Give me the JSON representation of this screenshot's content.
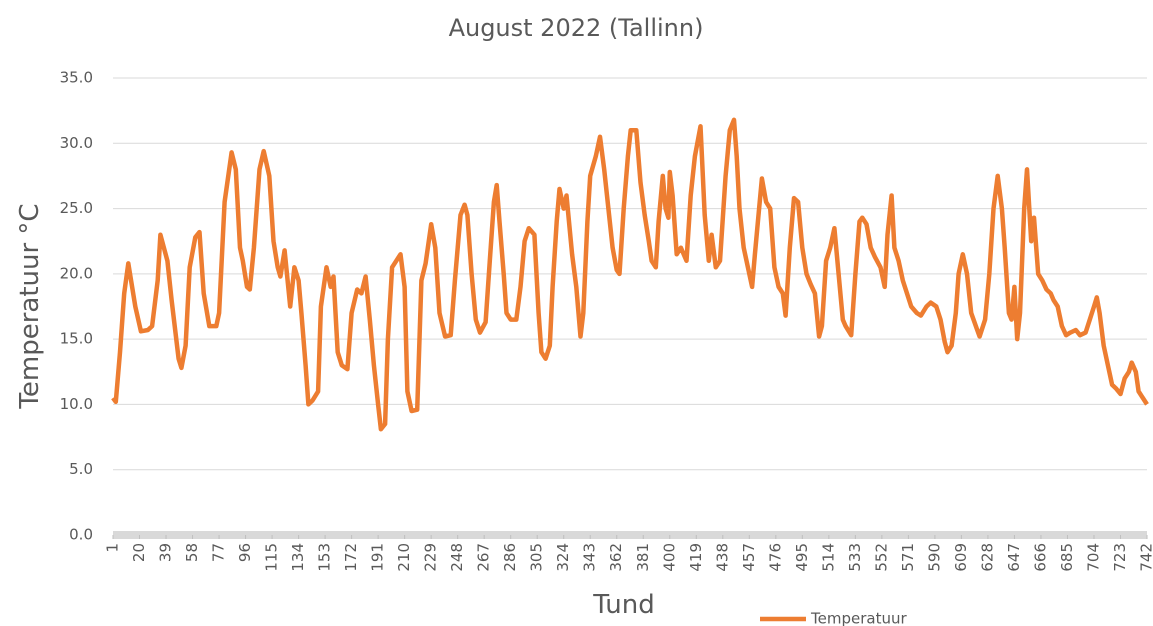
{
  "chart_data": {
    "type": "line",
    "title": "August 2022 (Tallinn)",
    "x_label": "Tund",
    "y_label": "Temperatuur °C",
    "x": [
      1,
      3,
      6,
      9,
      12,
      17,
      21,
      26,
      29,
      33,
      35,
      40,
      43,
      48,
      50,
      53,
      56,
      60,
      63,
      66,
      70,
      75,
      77,
      81,
      86,
      89,
      92,
      94,
      97,
      99,
      102,
      106,
      109,
      113,
      116,
      119,
      121,
      124,
      128,
      131,
      134,
      136,
      139,
      141,
      144,
      148,
      150,
      154,
      157,
      159,
      162,
      165,
      169,
      172,
      176,
      179,
      182,
      185,
      188,
      191,
      193,
      196,
      198,
      201,
      204,
      207,
      210,
      212,
      215,
      219,
      222,
      225,
      229,
      232,
      235,
      239,
      243,
      246,
      250,
      253,
      255,
      258,
      261,
      264,
      268,
      271,
      274,
      276,
      278,
      281,
      283,
      286,
      290,
      293,
      296,
      299,
      303,
      306,
      308,
      311,
      314,
      316,
      319,
      321,
      324,
      326,
      330,
      333,
      336,
      338,
      341,
      343,
      347,
      350,
      353,
      356,
      359,
      362,
      364,
      367,
      370,
      372,
      376,
      379,
      382,
      385,
      387,
      390,
      392,
      395,
      397,
      399,
      400,
      402,
      405,
      408,
      412,
      415,
      418,
      422,
      425,
      428,
      430,
      433,
      436,
      440,
      443,
      446,
      448,
      450,
      453,
      456,
      459,
      461,
      464,
      466,
      469,
      472,
      475,
      478,
      481,
      483,
      486,
      489,
      492,
      495,
      498,
      501,
      504,
      507,
      509,
      512,
      515,
      518,
      521,
      524,
      526,
      530,
      533,
      536,
      538,
      541,
      544,
      547,
      551,
      554,
      556,
      559,
      561,
      564,
      567,
      570,
      573,
      577,
      580,
      584,
      587,
      591,
      594,
      597,
      599,
      602,
      605,
      607,
      610,
      613,
      616,
      620,
      622,
      626,
      629,
      632,
      635,
      638,
      640,
      643,
      645,
      647,
      649,
      651,
      654,
      656,
      659,
      661,
      664,
      667,
      670,
      673,
      675,
      678,
      681,
      684,
      687,
      691,
      694,
      698,
      701,
      704,
      706,
      708,
      711,
      714,
      717,
      720,
      723,
      726,
      729,
      731,
      734,
      736,
      739,
      742
    ],
    "series": [
      {
        "name": "Temperatuur",
        "color": "#ed7d31",
        "values": [
          10.5,
          10.2,
          14,
          18.5,
          20.8,
          17.5,
          15.6,
          15.7,
          16,
          19.5,
          23,
          21,
          18,
          13.5,
          12.8,
          14.5,
          20.5,
          22.8,
          23.2,
          18.5,
          16,
          16,
          17,
          25.5,
          29.3,
          28,
          22,
          21,
          19,
          18.8,
          22,
          28,
          29.4,
          27.5,
          22.5,
          20.5,
          19.8,
          21.8,
          17.5,
          20.5,
          19.5,
          17,
          13,
          10,
          10.3,
          11,
          17.5,
          20.5,
          19,
          19.8,
          14,
          13,
          12.7,
          17,
          18.8,
          18.5,
          19.8,
          16.5,
          13,
          10,
          8.1,
          8.5,
          15,
          20.5,
          21,
          21.5,
          19,
          11,
          9.5,
          9.6,
          19.5,
          20.8,
          23.8,
          22,
          17,
          15.2,
          15.3,
          19.5,
          24.5,
          25.3,
          24.5,
          20,
          16.5,
          15.5,
          16.3,
          21,
          25.5,
          26.8,
          24,
          20,
          17,
          16.5,
          16.5,
          19,
          22.5,
          23.5,
          23,
          17,
          14,
          13.5,
          14.5,
          19,
          24,
          26.5,
          25,
          26,
          21.5,
          19,
          15.2,
          17,
          24,
          27.5,
          29,
          30.5,
          28,
          25,
          22,
          20.3,
          20,
          25,
          29,
          31,
          31,
          27,
          24.5,
          22.5,
          21,
          20.5,
          24,
          27.5,
          25,
          24.3,
          27.8,
          26,
          21.5,
          22,
          21,
          26,
          29,
          31.3,
          24.5,
          21,
          23,
          20.5,
          21,
          27.5,
          31,
          31.8,
          29,
          25,
          22,
          20.5,
          19,
          21.5,
          25,
          27.3,
          25.5,
          25,
          20.5,
          19,
          18.5,
          16.8,
          22,
          25.8,
          25.5,
          22,
          20,
          19.2,
          18.5,
          15.2,
          16,
          21,
          22,
          23.5,
          20,
          16.5,
          16,
          15.3,
          20,
          24,
          24.3,
          23.8,
          22,
          21.3,
          20.5,
          19,
          23,
          26,
          22,
          21,
          19.5,
          18.5,
          17.5,
          17,
          16.8,
          17.5,
          17.8,
          17.5,
          16.5,
          14.8,
          14,
          14.5,
          17,
          20,
          21.5,
          20,
          17,
          15.8,
          15.2,
          16.5,
          20,
          25,
          27.5,
          25,
          22,
          17,
          16.5,
          19,
          15,
          17,
          25,
          28,
          22.5,
          24.3,
          20,
          19.5,
          18.8,
          18.5,
          18,
          17.5,
          16,
          15.3,
          15.5,
          15.7,
          15.3,
          15.5,
          16.5,
          17.5,
          18.2,
          17,
          14.5,
          13,
          11.5,
          11.2,
          10.8,
          12,
          12.5,
          13.2,
          12.5,
          11,
          10.5,
          10
        ]
      }
    ],
    "xlim": [
      1,
      742
    ],
    "xticks": [
      1,
      20,
      39,
      58,
      77,
      96,
      115,
      134,
      153,
      172,
      191,
      210,
      229,
      248,
      267,
      286,
      305,
      324,
      343,
      362,
      381,
      400,
      419,
      438,
      457,
      476,
      495,
      514,
      533,
      552,
      571,
      590,
      609,
      628,
      647,
      666,
      685,
      704,
      723,
      742
    ],
    "ylim": [
      0,
      35
    ],
    "yticks": [
      {
        "value": 0,
        "label": "0.0"
      },
      {
        "value": 5,
        "label": "5.0"
      },
      {
        "value": 10,
        "label": "10.0"
      },
      {
        "value": 15,
        "label": "15.0"
      },
      {
        "value": 20,
        "label": "20.0"
      },
      {
        "value": 25,
        "label": "25.0"
      },
      {
        "value": 30,
        "label": "30.0"
      },
      {
        "value": 35,
        "label": "35.0"
      }
    ],
    "grid": true,
    "legend": "bottom"
  }
}
